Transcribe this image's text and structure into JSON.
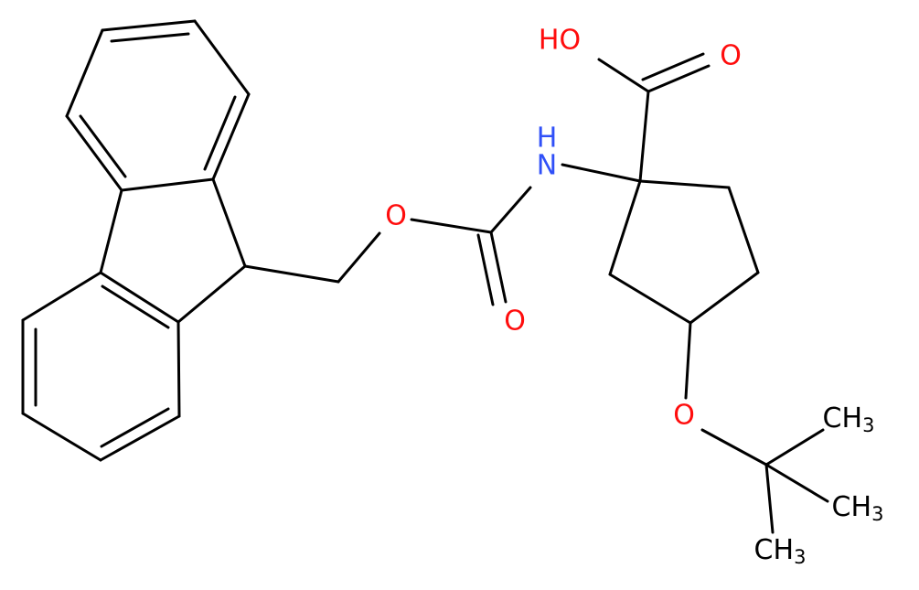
{
  "atoms": {
    "hydroxyl": "HO",
    "acid_oxygen": "O",
    "nitrogen": "N",
    "amine_hydrogen": "H",
    "ester_oxygen": "O",
    "carbonyl_oxygen": "O",
    "ether_oxygen": "O",
    "methyls": [
      {
        "label": "CH",
        "sub": "3"
      },
      {
        "label": "CH",
        "sub": "3"
      },
      {
        "label": "CH",
        "sub": "3"
      }
    ]
  }
}
